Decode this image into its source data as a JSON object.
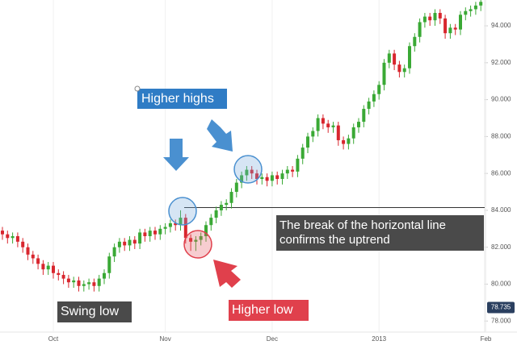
{
  "chart_data": {
    "type": "candlestick",
    "categories": [
      null,
      null,
      null,
      null,
      null,
      null,
      null,
      null,
      null,
      null,
      "Oct",
      null,
      null,
      null,
      null,
      null,
      null,
      null,
      null,
      null,
      null,
      null,
      null,
      null,
      null,
      null,
      null,
      null,
      null,
      null,
      null,
      null,
      "Nov",
      null,
      null,
      null,
      null,
      null,
      null,
      null,
      null,
      null,
      null,
      null,
      null,
      null,
      null,
      null,
      null,
      null,
      null,
      null,
      null,
      "Dec",
      null,
      null,
      null,
      null,
      null,
      null,
      null,
      null,
      null,
      null,
      null,
      null,
      null,
      null,
      null,
      null,
      null,
      null,
      null,
      null,
      "2013",
      null,
      null,
      null,
      null,
      null,
      null,
      null,
      null,
      null,
      null,
      null,
      null,
      null,
      null,
      null,
      null,
      null,
      null,
      null,
      null,
      "Feb"
    ],
    "open": [
      82.9,
      82.7,
      82.5,
      82.6,
      82.3,
      82.0,
      81.6,
      81.4,
      81.1,
      80.8,
      81.0,
      80.6,
      80.5,
      80.3,
      80.1,
      80.2,
      79.9,
      80.0,
      80.1,
      79.9,
      80.3,
      80.6,
      81.5,
      82.0,
      82.3,
      82.1,
      82.4,
      82.2,
      82.8,
      82.6,
      82.9,
      82.7,
      83.0,
      83.1,
      83.3,
      83.2,
      83.6,
      82.5,
      82.3,
      82.4,
      82.6,
      83.2,
      83.6,
      84.0,
      84.3,
      84.4,
      85.0,
      85.5,
      85.9,
      86.2,
      86.0,
      85.7,
      85.8,
      85.6,
      85.9,
      85.7,
      86.0,
      86.2,
      86.1,
      86.8,
      87.4,
      88.0,
      88.3,
      89.0,
      88.7,
      88.5,
      88.6,
      87.8,
      87.6,
      87.9,
      88.5,
      88.8,
      89.5,
      89.9,
      90.3,
      90.8,
      92.0,
      92.5,
      91.9,
      91.5,
      91.7,
      92.9,
      93.4,
      94.2,
      94.5,
      94.3,
      94.7,
      94.4,
      93.6,
      93.9,
      93.8,
      94.6,
      94.8,
      94.9,
      95.1,
      null
    ],
    "high": [
      83.1,
      82.9,
      82.8,
      82.8,
      82.5,
      82.2,
      81.8,
      81.6,
      81.3,
      81.2,
      81.2,
      80.8,
      80.7,
      80.5,
      80.4,
      80.4,
      80.2,
      80.3,
      80.3,
      80.5,
      80.8,
      81.7,
      82.2,
      82.5,
      82.5,
      82.6,
      82.6,
      83.0,
      83.0,
      83.1,
      83.1,
      83.2,
      83.3,
      83.5,
      83.5,
      84.0,
      83.8,
      82.7,
      82.6,
      82.8,
      83.4,
      83.8,
      84.2,
      84.5,
      84.6,
      85.2,
      85.7,
      86.1,
      86.4,
      86.4,
      86.2,
      86.0,
      86.0,
      86.1,
      86.1,
      86.2,
      86.4,
      86.4,
      87.0,
      87.6,
      88.2,
      88.5,
      89.2,
      89.2,
      88.9,
      88.8,
      88.8,
      88.0,
      88.1,
      88.7,
      89.0,
      89.7,
      90.1,
      90.5,
      91.0,
      92.2,
      92.7,
      92.7,
      92.1,
      91.9,
      93.1,
      93.6,
      94.4,
      94.7,
      94.7,
      94.9,
      94.9,
      94.6,
      94.1,
      94.1,
      94.8,
      95.0,
      95.1,
      95.3,
      95.5,
      null
    ],
    "low": [
      82.4,
      82.2,
      82.2,
      82.0,
      81.7,
      81.3,
      81.1,
      80.8,
      80.5,
      80.5,
      80.3,
      80.2,
      80.0,
      79.8,
      79.8,
      79.6,
      79.6,
      79.7,
      79.6,
      79.6,
      80.0,
      80.3,
      81.2,
      81.7,
      81.8,
      81.8,
      81.9,
      81.9,
      82.3,
      82.3,
      82.4,
      82.4,
      82.7,
      82.8,
      82.9,
      82.9,
      82.2,
      81.8,
      81.8,
      82.1,
      82.3,
      82.9,
      83.3,
      83.7,
      84.0,
      84.1,
      84.7,
      85.2,
      85.6,
      85.7,
      85.4,
      85.4,
      85.3,
      85.3,
      85.4,
      85.4,
      85.7,
      85.8,
      85.8,
      86.5,
      87.1,
      87.7,
      88.0,
      88.4,
      88.2,
      88.2,
      87.5,
      87.3,
      87.3,
      87.6,
      88.2,
      88.5,
      89.2,
      89.6,
      90.0,
      90.5,
      91.7,
      91.6,
      91.2,
      91.2,
      91.4,
      92.6,
      93.1,
      93.9,
      94.0,
      94.0,
      94.1,
      93.3,
      93.3,
      93.5,
      93.5,
      94.3,
      94.5,
      94.6,
      94.8,
      null
    ],
    "close": [
      82.7,
      82.5,
      82.6,
      82.3,
      82.0,
      81.6,
      81.4,
      81.1,
      80.8,
      81.0,
      80.6,
      80.5,
      80.3,
      80.1,
      80.2,
      79.9,
      80.0,
      80.1,
      79.9,
      80.3,
      80.6,
      81.5,
      82.0,
      82.3,
      82.1,
      82.4,
      82.2,
      82.8,
      82.6,
      82.9,
      82.7,
      83.0,
      83.1,
      83.3,
      83.2,
      83.6,
      82.5,
      82.3,
      82.4,
      82.6,
      83.2,
      83.6,
      84.0,
      84.3,
      84.4,
      85.0,
      85.5,
      85.9,
      86.2,
      86.0,
      85.7,
      85.8,
      85.6,
      85.9,
      85.7,
      86.0,
      86.2,
      86.1,
      86.8,
      87.4,
      88.0,
      88.3,
      89.0,
      88.7,
      88.5,
      88.6,
      87.8,
      87.6,
      87.9,
      88.5,
      88.8,
      89.5,
      89.9,
      90.3,
      90.8,
      92.0,
      92.5,
      91.9,
      91.5,
      91.7,
      92.9,
      93.4,
      94.2,
      94.5,
      94.3,
      94.7,
      94.4,
      93.6,
      93.9,
      93.8,
      94.6,
      94.8,
      94.9,
      95.1,
      95.3,
      null
    ],
    "up_color": "#3aa935",
    "down_color": "#d8262e",
    "ylim": [
      77.4,
      95.4
    ],
    "yticks": [
      {
        "value": 78,
        "label": "78.000"
      },
      {
        "value": 80,
        "label": "80.000"
      },
      {
        "value": 82,
        "label": "82.000"
      },
      {
        "value": 84,
        "label": "84.000"
      },
      {
        "value": 86,
        "label": "86.000"
      },
      {
        "value": 88,
        "label": "88.000"
      },
      {
        "value": 90,
        "label": "90.000"
      },
      {
        "value": 92,
        "label": "92.000"
      },
      {
        "value": 94,
        "label": "94.000"
      }
    ],
    "price_marker": {
      "value": 78.735,
      "label": "78.735"
    },
    "horizontal_line": 84.15,
    "annotations": [
      {
        "lines": [
          "Higher highs"
        ]
      },
      {
        "lines": [
          "The break of the horizontal line",
          "confirms the uptrend"
        ]
      },
      {
        "lines": [
          "Swing low"
        ]
      },
      {
        "lines": [
          "Higher low"
        ]
      }
    ]
  }
}
